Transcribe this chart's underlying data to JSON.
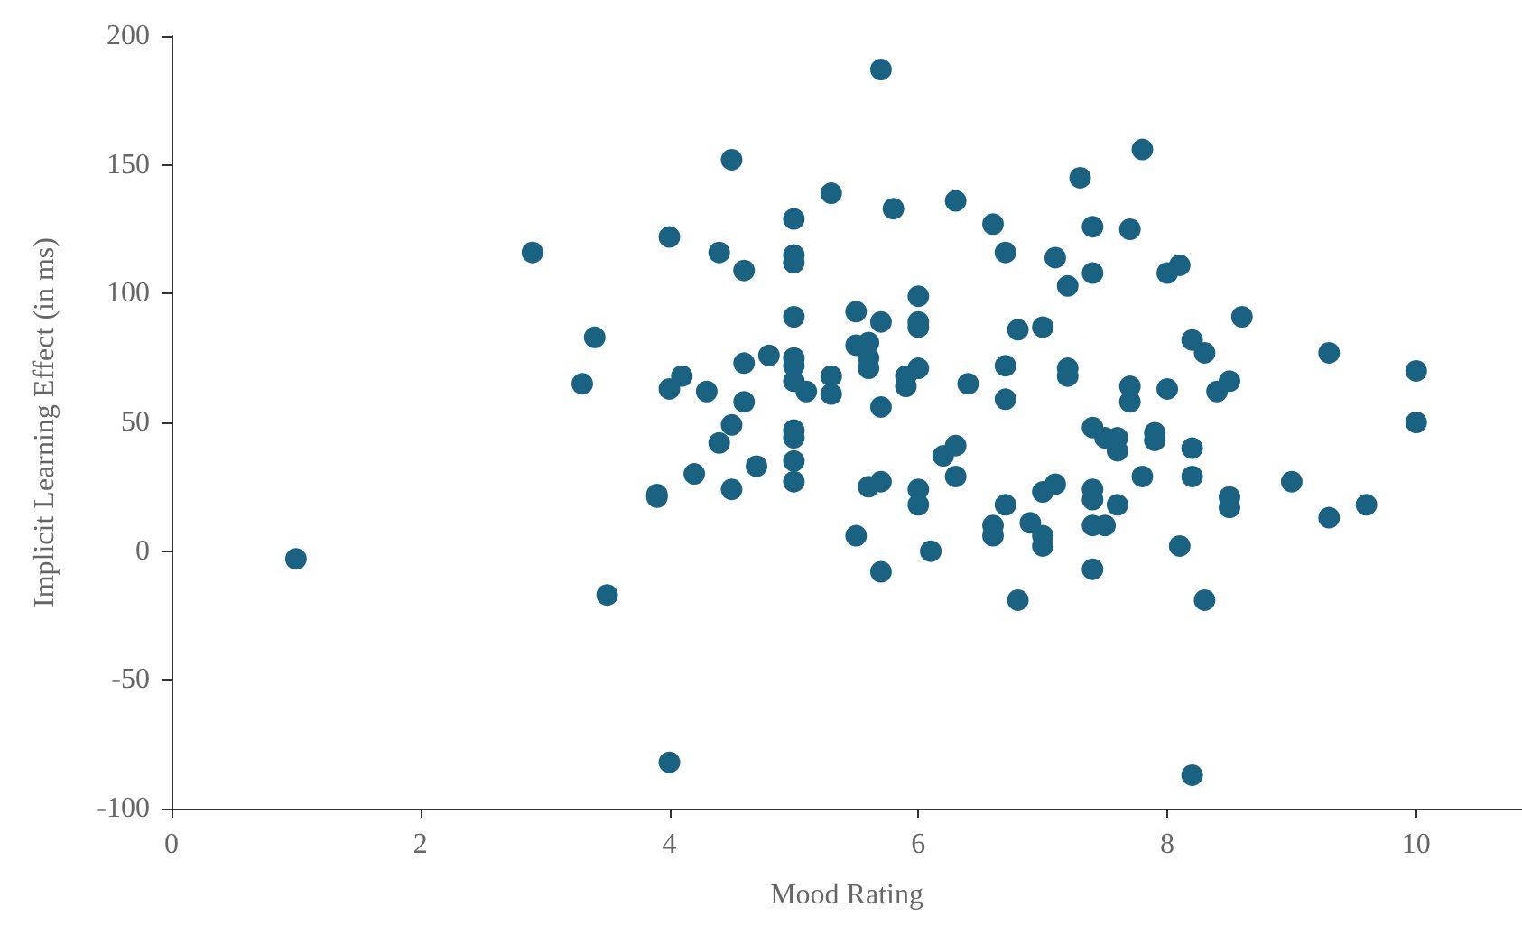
{
  "chart_data": {
    "type": "scatter",
    "xlabel": "Mood Rating",
    "ylabel": "Implicit Learning Effect (in ms)",
    "x": [
      1,
      2.9,
      3.3,
      3.4,
      3.5,
      3.9,
      3.9,
      4,
      4,
      4,
      4.1,
      4.2,
      4.3,
      4.4,
      4.4,
      4.5,
      4.5,
      4.5,
      4.6,
      4.6,
      4.6,
      4.7,
      4.8,
      5,
      5,
      5,
      5,
      5,
      5,
      5,
      5,
      5,
      5,
      5,
      5.1,
      5.3,
      5.3,
      5.3,
      5.5,
      5.5,
      5.5,
      5.6,
      5.6,
      5.6,
      5.6,
      5.7,
      5.7,
      5.7,
      5.7,
      5.7,
      5.8,
      5.9,
      5.9,
      6,
      6,
      6,
      6,
      6,
      6,
      6.1,
      6.2,
      6.3,
      6.3,
      6.3,
      6.4,
      6.6,
      6.6,
      6.6,
      6.7,
      6.7,
      6.7,
      6.7,
      6.8,
      6.8,
      6.9,
      7,
      7,
      7,
      7,
      7.1,
      7.1,
      7.2,
      7.2,
      7.2,
      7.3,
      7.4,
      7.4,
      7.4,
      7.4,
      7.4,
      7.4,
      7.4,
      7.5,
      7.5,
      7.6,
      7.6,
      7.6,
      7.7,
      7.7,
      7.7,
      7.8,
      7.8,
      7.9,
      7.9,
      8,
      8,
      8.1,
      8.1,
      8.2,
      8.2,
      8.2,
      8.2,
      8.3,
      8.3,
      8.4,
      8.5,
      8.5,
      8.5,
      8.6,
      9,
      9.3,
      9.3,
      9.6,
      10,
      10
    ],
    "series": [
      {
        "color": "#1a6282",
        "values": [
          -3,
          116,
          65,
          83,
          -17,
          22,
          21,
          122,
          63,
          -82,
          68,
          30,
          62,
          116,
          42,
          152,
          49,
          24,
          109,
          73,
          58,
          33,
          76,
          129,
          115,
          112,
          91,
          75,
          72,
          66,
          47,
          44,
          35,
          27,
          62,
          139,
          61,
          68,
          93,
          80,
          6,
          81,
          75,
          71,
          25,
          187,
          89,
          56,
          27,
          -8,
          133,
          68,
          64,
          99,
          89,
          87,
          71,
          24,
          18,
          0,
          37,
          136,
          41,
          29,
          65,
          127,
          10,
          6,
          116,
          72,
          59,
          18,
          86,
          -19,
          11,
          87,
          23,
          6,
          2,
          114,
          26,
          103,
          71,
          68,
          145,
          126,
          108,
          48,
          24,
          20,
          10,
          -7,
          44,
          10,
          44,
          39,
          18,
          125,
          64,
          58,
          156,
          29,
          46,
          43,
          108,
          63,
          111,
          2,
          82,
          40,
          29,
          -87,
          77,
          -19,
          62,
          66,
          21,
          17,
          91,
          27,
          77,
          13,
          18,
          70,
          50
        ]
      }
    ],
    "xlim": [
      0,
      10.85
    ],
    "xticks": [
      0,
      2,
      4,
      6,
      8,
      10
    ],
    "ylim": [
      -100,
      200
    ],
    "yticks": [
      -100,
      -50,
      0,
      50,
      100,
      150,
      200
    ],
    "grid": false,
    "marker": "circle"
  }
}
